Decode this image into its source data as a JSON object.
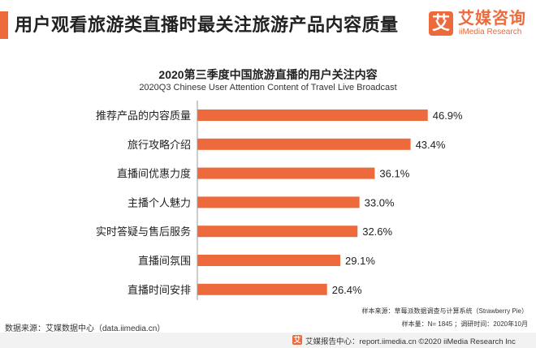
{
  "header": {
    "title": "用户观看旅游类直播时最关注旅游产品内容质量",
    "logo_mark": "艾",
    "logo_cn": "艾媒咨询",
    "logo_en": "iiMedia Research"
  },
  "colors": {
    "accent": "#ec6a3c",
    "bar": "#ec6a3c"
  },
  "chart_data": {
    "type": "bar",
    "orientation": "horizontal",
    "title": "2020第三季度中国旅游直播的用户关注内容",
    "subtitle": "2020Q3 Chinese User Attention Content of Travel Live Broadcast",
    "categories": [
      "推荐产品的内容质量",
      "旅行攻略介绍",
      "直播间优惠力度",
      "主播个人魅力",
      "实时答疑与售后服务",
      "直播间氛围",
      "直播时间安排"
    ],
    "values": [
      46.9,
      43.4,
      36.1,
      33.0,
      32.6,
      29.1,
      26.4
    ],
    "value_labels": [
      "46.9%",
      "43.4%",
      "36.1%",
      "33.0%",
      "32.6%",
      "29.1%",
      "26.4%"
    ],
    "unit": "%",
    "xlim": [
      0,
      50
    ],
    "grid": false,
    "legend": "none"
  },
  "footer": {
    "data_source": "数据来源：艾媒数据中心（data.iimedia.cn）",
    "sample_source": "样本来源：草莓派数据调查与计算系统（Strawberry Pie）",
    "sample_size": "样本量：N= 1845 ；调研时间：2020年10月",
    "report_center": "艾媒报告中心：report.iimedia.cn   ©2020  iiMedia Research  Inc",
    "report_icon": "艾"
  }
}
